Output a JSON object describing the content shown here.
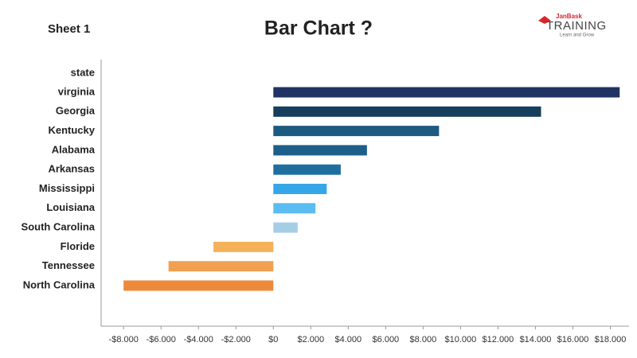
{
  "sheet_label": "Sheet 1",
  "logo": {
    "brand": "JanBask",
    "name": "TRAINING",
    "tagline": "Learn and Grow"
  },
  "chart_data": {
    "type": "hbar",
    "title": "Bar Chart ?",
    "y_label": "state",
    "categories": [
      "virginia",
      "Georgia",
      "Kentucky",
      "Alabama",
      "Arkansas",
      "Mississippi",
      "Louisiana",
      "South Carolina",
      "Floride",
      "Tennessee",
      "North Carolina"
    ],
    "values": [
      18500,
      14300,
      8850,
      5000,
      3600,
      2850,
      2250,
      1300,
      -3200,
      -5600,
      -8000
    ],
    "colors": [
      "#1f3364",
      "#153f5c",
      "#1d5a82",
      "#1c5f8a",
      "#1e6fa0",
      "#35a6e8",
      "#5bbcf2",
      "#a6cde6",
      "#f5b158",
      "#f0a050",
      "#ec8a3a"
    ],
    "xlim": [
      -9200,
      19000
    ],
    "xticks": [
      {
        "value": -8000,
        "label": "-$8.000"
      },
      {
        "value": -6000,
        "label": "-$6.000"
      },
      {
        "value": -4000,
        "label": "-$4.000"
      },
      {
        "value": -2000,
        "label": "-$2.000"
      },
      {
        "value": 0,
        "label": "$0"
      },
      {
        "value": 2000,
        "label": "$2.000"
      },
      {
        "value": 4000,
        "label": "$4.000"
      },
      {
        "value": 6000,
        "label": "$6.000"
      },
      {
        "value": 8000,
        "label": "$8.000"
      },
      {
        "value": 10000,
        "label": "$10.000"
      },
      {
        "value": 12000,
        "label": "$12.000"
      },
      {
        "value": 14000,
        "label": "$14.000"
      },
      {
        "value": 16000,
        "label": "$16.000"
      },
      {
        "value": 18000,
        "label": "$18.000"
      }
    ],
    "grid": false
  }
}
